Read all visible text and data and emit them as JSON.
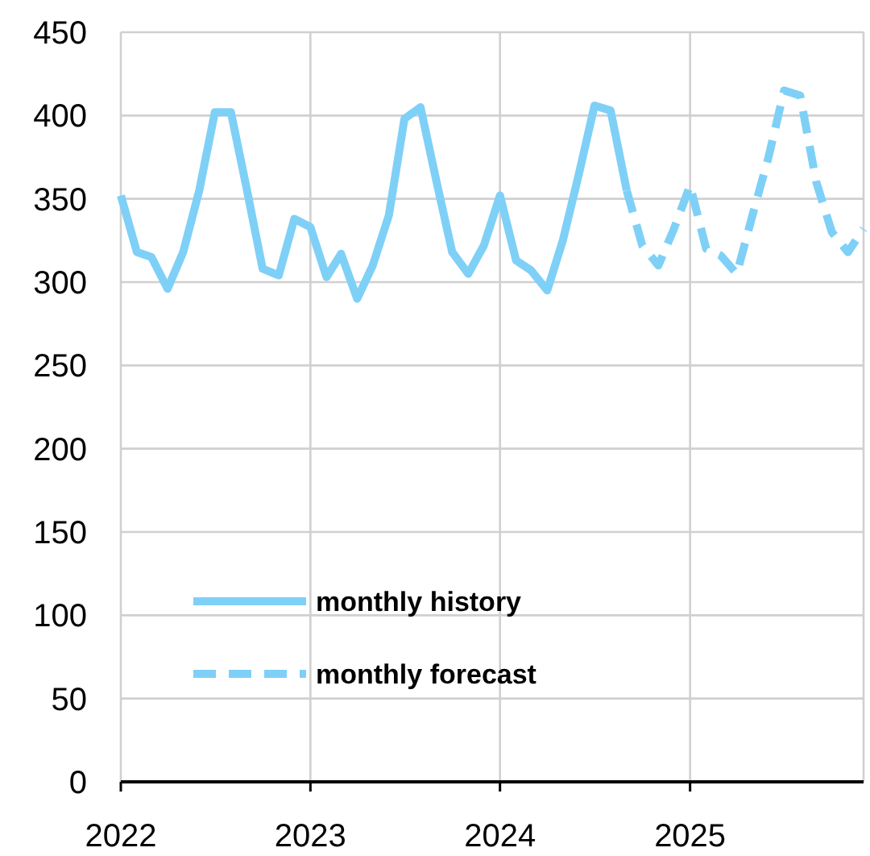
{
  "chart_data": {
    "type": "line",
    "xlim": [
      "2022-01",
      "2025-12"
    ],
    "xticks": [
      "2022",
      "2023",
      "2024",
      "2025"
    ],
    "ylim": [
      0,
      450
    ],
    "yticks": [
      0,
      50,
      100,
      150,
      200,
      250,
      300,
      350,
      400,
      450
    ],
    "grid": true,
    "legend": "bottom left",
    "series": [
      {
        "name": "monthly history",
        "color": "#7fd0f7",
        "line_style": "solid",
        "x": [
          "2022-01",
          "2022-02",
          "2022-03",
          "2022-04",
          "2022-05",
          "2022-06",
          "2022-07",
          "2022-08",
          "2022-09",
          "2022-10",
          "2022-11",
          "2022-12",
          "2023-01",
          "2023-02",
          "2023-03",
          "2023-04",
          "2023-05",
          "2023-06",
          "2023-07",
          "2023-08",
          "2023-09",
          "2023-10",
          "2023-11",
          "2023-12",
          "2024-01",
          "2024-02",
          "2024-03",
          "2024-04",
          "2024-05",
          "2024-06",
          "2024-07",
          "2024-08",
          "2024-09"
        ],
        "values": [
          352,
          318,
          315,
          296,
          318,
          355,
          402,
          402,
          355,
          308,
          304,
          338,
          333,
          303,
          317,
          290,
          310,
          340,
          398,
          405,
          360,
          318,
          305,
          322,
          352,
          313,
          307,
          295,
          325,
          365,
          406,
          403,
          355
        ]
      },
      {
        "name": "monthly forecast",
        "color": "#7fd0f7",
        "line_style": "dashed",
        "x": [
          "2024-09",
          "2024-10",
          "2024-11",
          "2024-12",
          "2025-01",
          "2025-02",
          "2025-03",
          "2025-04",
          "2025-05",
          "2025-06",
          "2025-07",
          "2025-08",
          "2025-09",
          "2025-10",
          "2025-11",
          "2025-12"
        ],
        "values": [
          355,
          322,
          310,
          332,
          358,
          320,
          316,
          305,
          340,
          375,
          415,
          412,
          360,
          330,
          318,
          332
        ]
      }
    ]
  }
}
